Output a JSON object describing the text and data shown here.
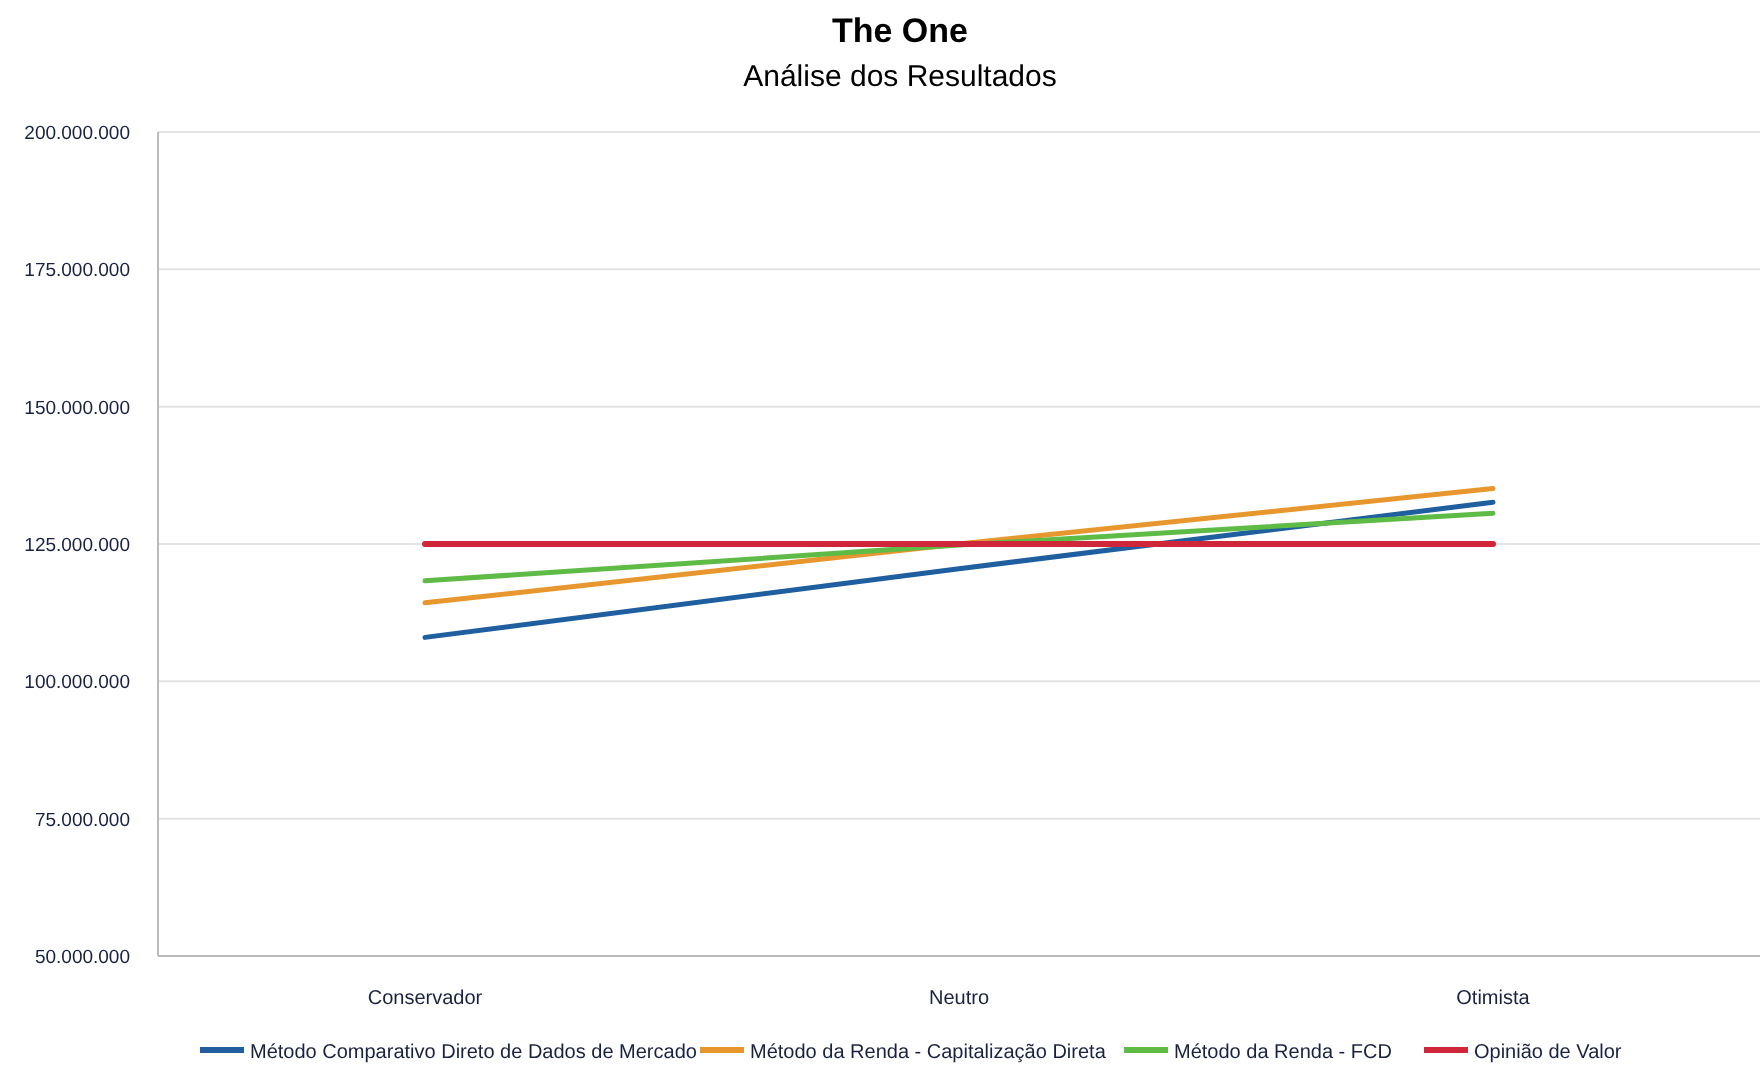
{
  "chart_data": {
    "type": "line",
    "title": "The One",
    "subtitle": "Análise dos Resultados",
    "categories": [
      "Conservador",
      "Neutro",
      "Otimista"
    ],
    "series": [
      {
        "name": "Método Comparativo Direto de Dados de Mercado",
        "color": "#1f5fa0",
        "values": [
          108000000,
          120500000,
          132600000
        ]
      },
      {
        "name": "Método da Renda - Capitalização Direta",
        "color": "#e8962e",
        "values": [
          114300000,
          125000000,
          135100000
        ]
      },
      {
        "name": "Método da Renda - FCD",
        "color": "#5dbb46",
        "values": [
          118300000,
          124800000,
          130600000
        ]
      },
      {
        "name": "Opinião de Valor",
        "color": "#d0263a",
        "values": [
          125000000,
          125000000,
          125000000
        ]
      }
    ],
    "ylim": [
      50000000,
      200000000
    ],
    "yticks": [
      {
        "value": 50000000,
        "label": "50.000.000"
      },
      {
        "value": 75000000,
        "label": "75.000.000"
      },
      {
        "value": 100000000,
        "label": "100.000.000"
      },
      {
        "value": 125000000,
        "label": "125.000.000"
      },
      {
        "value": 150000000,
        "label": "150.000.000"
      },
      {
        "value": 175000000,
        "label": "175.000.000"
      },
      {
        "value": 200000000,
        "label": "200.000.000"
      }
    ],
    "grid": "y",
    "legend": "bottom",
    "marker": "none",
    "line_style": "solid"
  }
}
